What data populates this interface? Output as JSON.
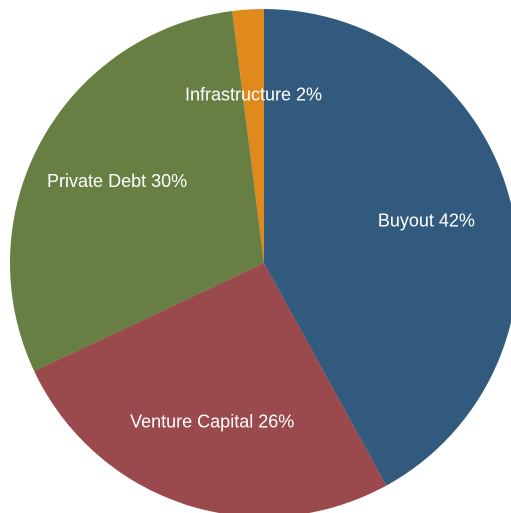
{
  "chart_data": {
    "type": "pie",
    "categories": [
      "Buyout",
      "Venture Capital",
      "Private Debt",
      "Infrastructure"
    ],
    "values": [
      42,
      26,
      30,
      2
    ],
    "value_labels": [
      "42%",
      "26%",
      "30%",
      "2%"
    ],
    "colors": [
      "#325a7e",
      "#9a4a4c",
      "#677f43",
      "#e08a1e"
    ]
  }
}
